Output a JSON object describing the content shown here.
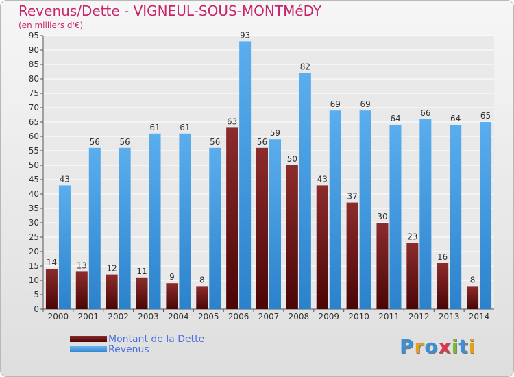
{
  "title": "Revenus/Dette - VIGNEUL-SOUS-MONTMéDY",
  "subtitle": "(en milliers d'€)",
  "logo": {
    "letters": [
      "P",
      "r",
      "o",
      "x",
      "i",
      "t",
      "i"
    ],
    "colors": [
      "#3b8fd4",
      "#e2a21b",
      "#3b8fd4",
      "#d8394f",
      "#7cbb2e",
      "#3b8fd4",
      "#e2a21b"
    ]
  },
  "legend": {
    "dette": "Montant de la Dette",
    "revenus": "Revenus"
  },
  "chart_data": {
    "type": "bar",
    "categories": [
      "2000",
      "2001",
      "2002",
      "2003",
      "2004",
      "2005",
      "2006",
      "2007",
      "2008",
      "2009",
      "2010",
      "2011",
      "2012",
      "2013",
      "2014"
    ],
    "series": [
      {
        "name": "Montant de la Dette",
        "color": "#7a1d1d",
        "values": [
          14,
          13,
          12,
          11,
          9,
          8,
          63,
          56,
          50,
          43,
          37,
          30,
          23,
          16,
          8
        ]
      },
      {
        "name": "Revenus",
        "color": "#4aa3e6",
        "values": [
          43,
          56,
          56,
          61,
          61,
          56,
          93,
          59,
          82,
          69,
          69,
          64,
          66,
          64,
          65
        ]
      }
    ],
    "ylim": [
      0,
      95
    ],
    "ytick_step": 5,
    "grid": true,
    "legend_position": "bottom-left"
  }
}
